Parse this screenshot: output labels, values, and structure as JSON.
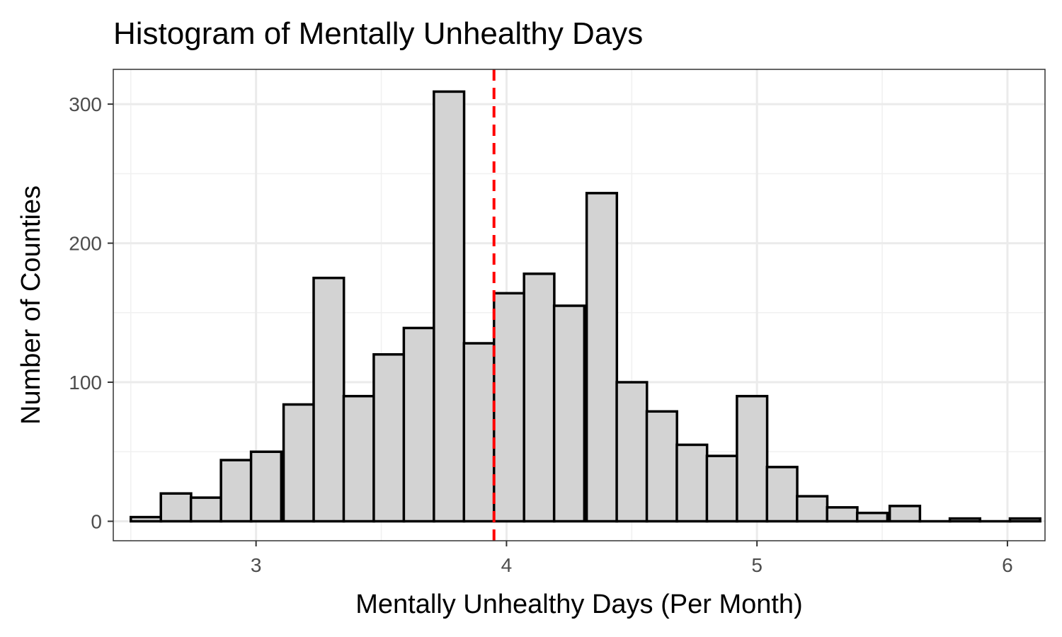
{
  "chart_data": {
    "type": "bar",
    "subtype": "histogram",
    "title": "Histogram of Mentally Unhealthy Days",
    "xlabel": "Mentally Unhealthy Days (Per Month)",
    "ylabel": "Number of Counties",
    "xlim": [
      2.43,
      6.15
    ],
    "ylim": [
      -14,
      325
    ],
    "x_ticks": [
      3,
      4,
      5,
      6
    ],
    "y_ticks": [
      0,
      100,
      200,
      300
    ],
    "bin_width": 0.1207,
    "bins": [
      {
        "start": 2.5,
        "count": 3
      },
      {
        "start": 2.62,
        "count": 20
      },
      {
        "start": 2.74,
        "count": 17
      },
      {
        "start": 2.86,
        "count": 44
      },
      {
        "start": 2.98,
        "count": 50
      },
      {
        "start": 3.11,
        "count": 84
      },
      {
        "start": 3.23,
        "count": 175
      },
      {
        "start": 3.35,
        "count": 90
      },
      {
        "start": 3.47,
        "count": 120
      },
      {
        "start": 3.59,
        "count": 139
      },
      {
        "start": 3.71,
        "count": 309
      },
      {
        "start": 3.83,
        "count": 128
      },
      {
        "start": 3.95,
        "count": 164
      },
      {
        "start": 4.07,
        "count": 178
      },
      {
        "start": 4.19,
        "count": 155
      },
      {
        "start": 4.32,
        "count": 236
      },
      {
        "start": 4.44,
        "count": 100
      },
      {
        "start": 4.56,
        "count": 79
      },
      {
        "start": 4.68,
        "count": 55
      },
      {
        "start": 4.8,
        "count": 47
      },
      {
        "start": 4.92,
        "count": 90
      },
      {
        "start": 5.04,
        "count": 39
      },
      {
        "start": 5.16,
        "count": 18
      },
      {
        "start": 5.28,
        "count": 10
      },
      {
        "start": 5.4,
        "count": 6
      },
      {
        "start": 5.53,
        "count": 11
      },
      {
        "start": 5.65,
        "count": 0
      },
      {
        "start": 5.77,
        "count": 2
      },
      {
        "start": 5.89,
        "count": 0
      },
      {
        "start": 6.01,
        "count": 2
      }
    ],
    "reference_line": {
      "x": 3.95,
      "style": "dashed",
      "color": "#ff0000"
    },
    "grid": true,
    "legend": "none",
    "bar_fill": "#d3d3d3",
    "bar_stroke": "#000000"
  }
}
